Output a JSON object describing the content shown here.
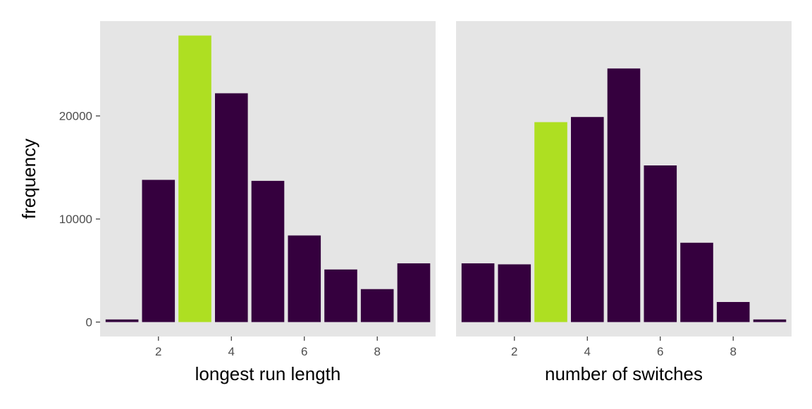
{
  "chart_data": [
    {
      "type": "bar",
      "xlabel": "longest run length",
      "ylabel": "frequency",
      "x": [
        1,
        2,
        3,
        4,
        5,
        6,
        7,
        8,
        9
      ],
      "values": [
        250,
        13800,
        27800,
        22200,
        13700,
        8400,
        5100,
        3200,
        5700
      ],
      "highlight_x": 3,
      "xticks": [
        2,
        4,
        6,
        8
      ],
      "yticks": [
        0,
        10000,
        20000
      ],
      "xlim": [
        0.4,
        9.6
      ],
      "ylim": [
        -1400,
        29200
      ]
    },
    {
      "type": "bar",
      "xlabel": "number of switches",
      "ylabel": "frequency",
      "x": [
        1,
        2,
        3,
        4,
        5,
        6,
        7,
        8,
        9
      ],
      "values": [
        5700,
        5600,
        19400,
        19900,
        24600,
        15200,
        7700,
        1950,
        250
      ],
      "highlight_x": 3,
      "xticks": [
        2,
        4,
        6,
        8
      ],
      "yticks": [
        0,
        10000,
        20000
      ],
      "xlim": [
        0.4,
        9.6
      ],
      "ylim": [
        -1400,
        29200
      ]
    }
  ],
  "colors": {
    "bar": "#35003e",
    "highlight": "#aedf22",
    "panel_background": "#e5e5e5"
  }
}
